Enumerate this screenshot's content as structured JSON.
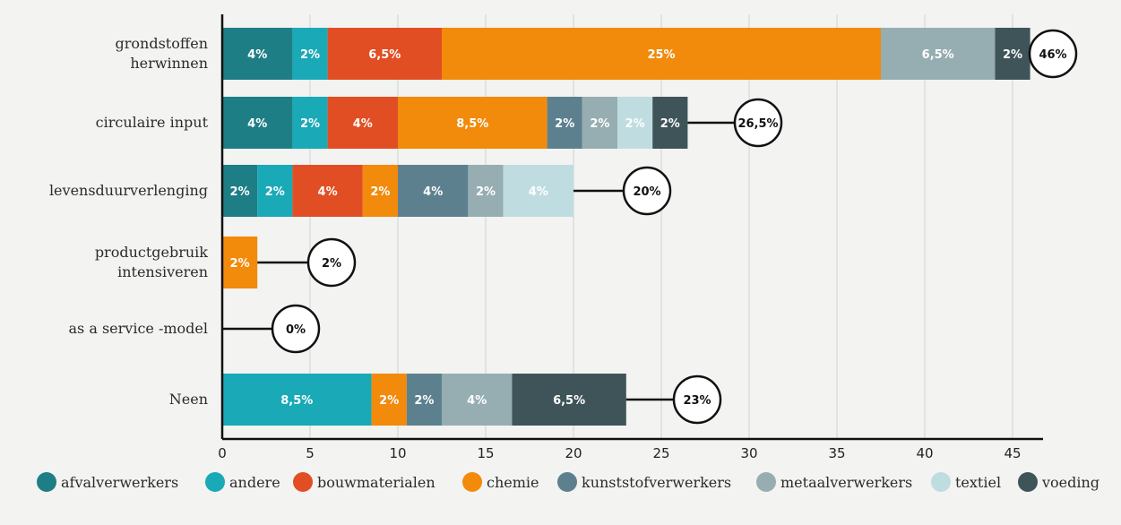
{
  "chart_data": {
    "type": "bar",
    "orientation": "horizontal",
    "stacked": true,
    "categories": [
      "grondstoffen herwinnen",
      "circulaire input",
      "levensduurverlenging",
      "productgebruik intensiveren",
      "as a service -model",
      "Neen"
    ],
    "xlim": [
      0,
      46
    ],
    "xticks": [
      0,
      5,
      10,
      15,
      20,
      25,
      30,
      35,
      40,
      45
    ],
    "grid": true,
    "legend_position": "bottom",
    "series": [
      {
        "name": "afvalverwerkers",
        "color": "#1e7e86",
        "values": [
          4,
          4,
          2,
          0,
          0,
          0
        ],
        "labels": [
          "4%",
          "4%",
          "2%",
          "",
          "",
          ""
        ]
      },
      {
        "name": "andere",
        "color": "#1aa9b7",
        "values": [
          2,
          2,
          2,
          0,
          0,
          8.5
        ],
        "labels": [
          "2%",
          "2%",
          "2%",
          "",
          "",
          "8,5%"
        ]
      },
      {
        "name": "bouwmaterialen",
        "color": "#e24e23",
        "values": [
          6.5,
          4,
          4,
          0,
          0,
          0
        ],
        "labels": [
          "6,5%",
          "4%",
          "4%",
          "",
          "",
          ""
        ]
      },
      {
        "name": "chemie",
        "color": "#f28a0b",
        "values": [
          25,
          8.5,
          2,
          2,
          0,
          2
        ],
        "labels": [
          "25%",
          "8,5%",
          "2%",
          "2%",
          "",
          "2%"
        ]
      },
      {
        "name": "kunststofverwerkers",
        "color": "#5d808f",
        "values": [
          0,
          2,
          4,
          0,
          0,
          2
        ],
        "labels": [
          "",
          "2%",
          "4%",
          "",
          "",
          "2%"
        ]
      },
      {
        "name": "metaalverwerkers",
        "color": "#96aeb1",
        "values": [
          6.5,
          2,
          2,
          0,
          0,
          4
        ],
        "labels": [
          "6,5%",
          "2%",
          "2%",
          "",
          "",
          "4%"
        ]
      },
      {
        "name": "textiel",
        "color": "#bfdde0",
        "values": [
          0,
          2,
          4,
          0,
          0,
          0
        ],
        "labels": [
          "",
          "2%",
          "4%",
          "",
          "",
          ""
        ]
      },
      {
        "name": "voeding",
        "color": "#3f5458",
        "values": [
          2,
          2,
          0,
          0,
          0,
          6.5
        ],
        "labels": [
          "2%",
          "2%",
          "",
          "",
          "",
          "6,5%"
        ]
      }
    ],
    "totals": [
      "46%",
      "26,5%",
      "20%",
      "2%",
      "0%",
      "23%"
    ]
  }
}
